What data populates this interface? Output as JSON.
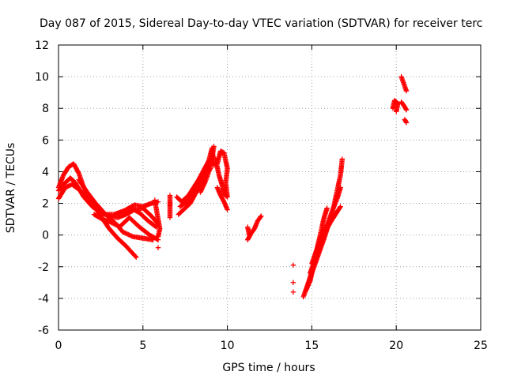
{
  "chart_data": {
    "type": "scatter",
    "title": "Day 087 of 2015, Sidereal Day-to-day VTEC variation (SDTVAR) for receiver terc",
    "xlabel": "GPS time / hours",
    "ylabel": "SDTVAR / TECUs",
    "xlim": [
      0,
      25
    ],
    "ylim": [
      -6,
      12
    ],
    "x_ticks": [
      "0",
      "5",
      "10",
      "15",
      "20",
      "25"
    ],
    "y_ticks": [
      "-6",
      "-4",
      "-2",
      "0",
      "2",
      "4",
      "6",
      "8",
      "10",
      "12"
    ],
    "grid": true,
    "marker": "+",
    "color": "#ff0000",
    "segments": [
      {
        "points": [
          [
            0.0,
            2.8
          ],
          [
            0.3,
            3.2
          ],
          [
            0.7,
            3.6
          ],
          [
            1.0,
            3.3
          ],
          [
            1.5,
            2.4
          ],
          [
            2.0,
            1.8
          ],
          [
            2.5,
            1.4
          ],
          [
            3.0,
            1.2
          ],
          [
            3.5,
            1.1
          ],
          [
            4.0,
            1.3
          ],
          [
            4.5,
            1.6
          ],
          [
            5.0,
            1.7
          ],
          [
            5.5,
            1.2
          ],
          [
            5.9,
            0.7
          ]
        ]
      },
      {
        "points": [
          [
            0.0,
            2.3
          ],
          [
            0.4,
            3.0
          ],
          [
            0.8,
            3.2
          ],
          [
            1.3,
            2.8
          ],
          [
            1.8,
            2.1
          ],
          [
            2.3,
            1.6
          ],
          [
            2.8,
            1.3
          ],
          [
            3.3,
            1.3
          ],
          [
            3.8,
            1.5
          ],
          [
            4.3,
            1.7
          ],
          [
            4.8,
            1.4
          ],
          [
            5.3,
            0.9
          ],
          [
            5.8,
            0.5
          ]
        ]
      },
      {
        "points": [
          [
            0.0,
            3.0
          ],
          [
            0.3,
            3.8
          ],
          [
            0.6,
            4.3
          ],
          [
            0.9,
            4.5
          ],
          [
            1.2,
            3.9
          ],
          [
            1.5,
            3.0
          ],
          [
            2.0,
            2.0
          ],
          [
            2.5,
            1.2
          ],
          [
            3.0,
            0.4
          ],
          [
            3.5,
            -0.2
          ],
          [
            4.0,
            -0.7
          ],
          [
            4.6,
            -1.4
          ]
        ]
      },
      {
        "points": [
          [
            1.2,
            3.5
          ],
          [
            1.7,
            2.7
          ],
          [
            2.2,
            2.0
          ],
          [
            2.7,
            1.4
          ],
          [
            3.2,
            0.9
          ],
          [
            3.6,
            0.5
          ],
          [
            3.9,
            0.8
          ],
          [
            4.2,
            1.1
          ],
          [
            4.8,
            0.5
          ],
          [
            5.4,
            0.0
          ],
          [
            5.9,
            -0.3
          ]
        ]
      },
      {
        "points": [
          [
            2.1,
            1.3
          ],
          [
            2.6,
            1.0
          ],
          [
            3.1,
            0.8
          ],
          [
            3.5,
            0.6
          ],
          [
            3.8,
            0.2
          ],
          [
            4.4,
            -0.1
          ],
          [
            5.0,
            -0.2
          ],
          [
            5.6,
            -0.3
          ]
        ]
      },
      {
        "points": [
          [
            4.0,
            1.6
          ],
          [
            4.5,
            1.9
          ],
          [
            5.0,
            1.8
          ],
          [
            5.5,
            2.0
          ],
          [
            5.9,
            2.1
          ]
        ]
      },
      {
        "points": [
          [
            5.7,
            2.2
          ],
          [
            5.8,
            1.6
          ],
          [
            5.9,
            1.0
          ],
          [
            6.0,
            0.4
          ],
          [
            5.9,
            -0.1
          ]
        ]
      },
      {
        "points": [
          [
            5.9,
            -0.8
          ]
        ]
      },
      {
        "points": [
          [
            6.6,
            2.5
          ],
          [
            6.6,
            2.2
          ],
          [
            6.6,
            1.7
          ],
          [
            6.6,
            1.1
          ]
        ]
      },
      {
        "points": [
          [
            7.0,
            2.4
          ],
          [
            7.3,
            2.1
          ],
          [
            7.7,
            2.5
          ],
          [
            8.0,
            3.0
          ],
          [
            8.3,
            3.5
          ],
          [
            8.6,
            4.1
          ],
          [
            8.9,
            4.7
          ],
          [
            9.1,
            5.5
          ],
          [
            9.2,
            4.4
          ]
        ]
      },
      {
        "points": [
          [
            7.1,
            1.3
          ],
          [
            7.4,
            1.6
          ],
          [
            7.8,
            2.0
          ],
          [
            8.1,
            2.6
          ],
          [
            8.5,
            3.3
          ],
          [
            8.8,
            3.9
          ],
          [
            9.0,
            4.2
          ]
        ]
      },
      {
        "points": [
          [
            7.2,
            1.8
          ],
          [
            7.6,
            2.1
          ],
          [
            7.9,
            2.5
          ],
          [
            8.2,
            3.2
          ],
          [
            8.6,
            3.8
          ],
          [
            8.9,
            4.4
          ]
        ]
      },
      {
        "points": [
          [
            8.4,
            2.7
          ],
          [
            8.7,
            3.4
          ],
          [
            9.0,
            4.3
          ],
          [
            9.2,
            5.6
          ]
        ]
      },
      {
        "points": [
          [
            9.3,
            4.8
          ],
          [
            9.5,
            3.8
          ],
          [
            9.7,
            3.1
          ],
          [
            9.8,
            2.6
          ],
          [
            10.0,
            2.4
          ],
          [
            9.9,
            3.3
          ],
          [
            10.0,
            4.2
          ],
          [
            9.8,
            5.2
          ],
          [
            9.6,
            5.3
          ],
          [
            9.4,
            4.5
          ]
        ]
      },
      {
        "points": [
          [
            9.4,
            3.0
          ],
          [
            9.6,
            2.5
          ],
          [
            9.8,
            2.1
          ],
          [
            10.0,
            1.6
          ]
        ]
      },
      {
        "points": [
          [
            11.2,
            -0.3
          ],
          [
            11.4,
            0.1
          ],
          [
            11.6,
            0.4
          ],
          [
            11.8,
            0.9
          ],
          [
            12.0,
            1.2
          ]
        ]
      },
      {
        "points": [
          [
            11.2,
            0.5
          ],
          [
            11.3,
            0.0
          ]
        ]
      },
      {
        "points": [
          [
            13.9,
            -1.9
          ]
        ]
      },
      {
        "points": [
          [
            13.9,
            -3.0
          ]
        ]
      },
      {
        "points": [
          [
            13.9,
            -3.6
          ]
        ]
      },
      {
        "points": [
          [
            14.5,
            -3.9
          ],
          [
            14.8,
            -3.0
          ],
          [
            15.1,
            -2.1
          ],
          [
            15.4,
            -1.2
          ],
          [
            15.7,
            -0.3
          ],
          [
            16.0,
            0.7
          ],
          [
            16.3,
            1.8
          ],
          [
            16.5,
            2.8
          ],
          [
            16.7,
            3.8
          ],
          [
            16.8,
            4.8
          ]
        ]
      },
      {
        "points": [
          [
            14.7,
            -3.4
          ],
          [
            15.0,
            -2.3
          ],
          [
            15.3,
            -1.3
          ],
          [
            15.6,
            -0.3
          ],
          [
            15.9,
            0.6
          ],
          [
            16.2,
            1.5
          ],
          [
            16.5,
            2.3
          ],
          [
            16.7,
            3.0
          ]
        ]
      },
      {
        "points": [
          [
            14.9,
            -2.4
          ],
          [
            15.2,
            -1.5
          ],
          [
            15.5,
            -0.6
          ],
          [
            15.8,
            0.2
          ],
          [
            16.1,
            0.8
          ],
          [
            16.4,
            1.3
          ],
          [
            16.7,
            1.8
          ]
        ]
      },
      {
        "points": [
          [
            14.6,
            -3.6
          ],
          [
            14.9,
            -2.9
          ],
          [
            15.1,
            -1.9
          ],
          [
            15.3,
            -0.9
          ],
          [
            15.5,
            0.0
          ],
          [
            15.7,
            1.0
          ],
          [
            15.9,
            1.7
          ]
        ]
      },
      {
        "points": [
          [
            15.0,
            -1.8
          ],
          [
            15.3,
            -0.9
          ],
          [
            15.6,
            -0.1
          ],
          [
            15.8,
            0.5
          ]
        ]
      },
      {
        "points": [
          [
            19.8,
            8.0
          ],
          [
            19.9,
            8.5
          ],
          [
            20.1,
            8.3
          ],
          [
            20.0,
            7.8
          ]
        ]
      },
      {
        "points": [
          [
            20.3,
            8.4
          ],
          [
            20.5,
            8.1
          ],
          [
            20.6,
            7.9
          ]
        ]
      },
      {
        "points": [
          [
            20.5,
            7.3
          ],
          [
            20.6,
            7.1
          ]
        ]
      },
      {
        "points": [
          [
            20.3,
            10.0
          ],
          [
            20.4,
            9.7
          ],
          [
            20.5,
            9.4
          ],
          [
            20.6,
            9.1
          ]
        ]
      }
    ]
  }
}
